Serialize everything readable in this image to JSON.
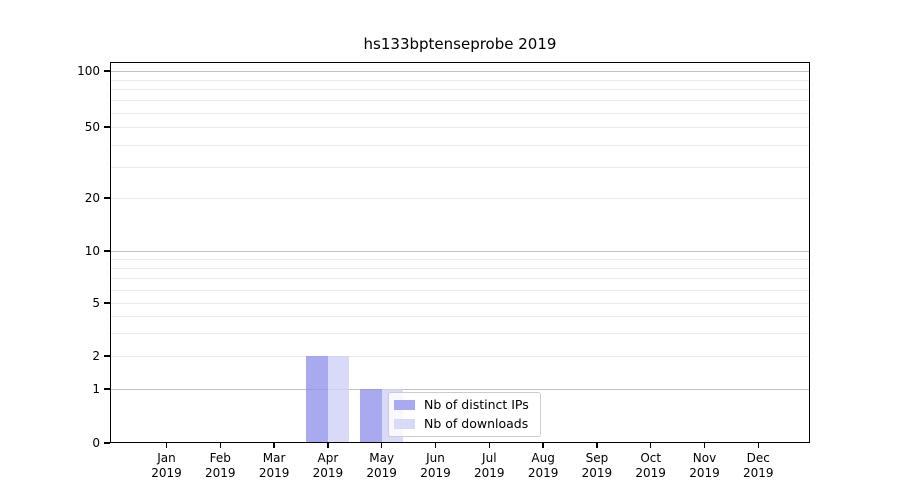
{
  "chart_data": {
    "type": "bar",
    "title": "hs133bptenseprobe 2019",
    "categories": [
      "Jan 2019",
      "Feb 2019",
      "Mar 2019",
      "Apr 2019",
      "May 2019",
      "Jun 2019",
      "Jul 2019",
      "Aug 2019",
      "Sep 2019",
      "Oct 2019",
      "Nov 2019",
      "Dec 2019"
    ],
    "series": [
      {
        "name": "Nb of distinct IPs",
        "color": "rgba(148,148,236,0.8)",
        "color_hex": "#a9a9f1",
        "values": [
          0,
          0,
          0,
          2,
          1,
          0,
          0,
          0,
          0,
          0,
          0,
          0
        ]
      },
      {
        "name": "Nb of downloads",
        "color": "rgba(208,208,246,0.8)",
        "color_hex": "#d9d9f8",
        "values": [
          0,
          0,
          0,
          2,
          1,
          0,
          0,
          0,
          0,
          0,
          0,
          0
        ]
      }
    ],
    "xlabel": "",
    "ylabel": "",
    "y_axis": {
      "scale": "symlog",
      "tick_labels": [
        "0",
        "1",
        "2",
        "5",
        "10",
        "20",
        "50",
        "100"
      ],
      "tick_values": [
        0,
        1,
        2,
        5,
        10,
        20,
        50,
        100
      ],
      "range": [
        0,
        100
      ]
    },
    "grid": "horizontal major+minor, no vertical",
    "legend_position": "inside lower area, left of center-right",
    "colors": {
      "grid_major": "#c2c2c2",
      "grid_minor": "#eaeaea",
      "spine": "#000000",
      "background": "#ffffff"
    }
  }
}
